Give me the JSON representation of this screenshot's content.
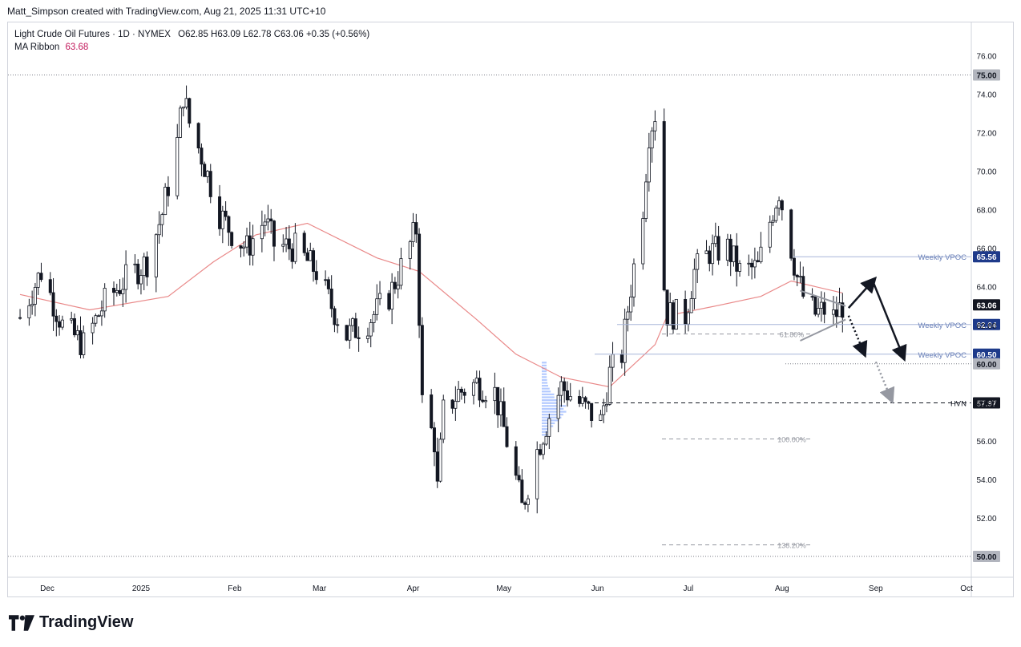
{
  "header": {
    "credit": "Matt_Simpson created with TradingView.com, Aug 21, 2025 11:31 UTC+10"
  },
  "legend": {
    "symbol": "Light Crude Oil Futures · 1D · NYMEX",
    "ohlc": "O62.85  H63.09  L62.78  C63.06  +0.35 (+0.56%)",
    "ma_label": "MA Ribbon",
    "ma_value": "63.68"
  },
  "brand": {
    "name": "TradingView"
  },
  "chart_data": {
    "type": "candlestick",
    "title": "Light Crude Oil Futures · 1D · NYMEX",
    "ylim": [
      50.0,
      76.0
    ],
    "y_ticks": [
      "50.00",
      "52.00",
      "54.00",
      "56.00",
      "58.00",
      "60.00",
      "62.00",
      "64.00",
      "66.00",
      "68.00",
      "70.00",
      "72.00",
      "74.00",
      "76.00"
    ],
    "x_ticks": [
      {
        "label": "Dec",
        "date": "2024-12-01"
      },
      {
        "label": "2025",
        "date": "2025-01-01"
      },
      {
        "label": "Feb",
        "date": "2025-02-01"
      },
      {
        "label": "Mar",
        "date": "2025-03-01"
      },
      {
        "label": "Apr",
        "date": "2025-04-01"
      },
      {
        "label": "May",
        "date": "2025-05-01"
      },
      {
        "label": "Jun",
        "date": "2025-06-01"
      },
      {
        "label": "Jul",
        "date": "2025-07-01"
      },
      {
        "label": "Aug",
        "date": "2025-08-01"
      },
      {
        "label": "Sep",
        "date": "2025-09-01"
      },
      {
        "label": "Oct",
        "date": "2025-10-01"
      }
    ],
    "price_path": [
      [
        "2024-11-22",
        62.4
      ],
      [
        "2024-11-29",
        64.8
      ],
      [
        "2024-12-06",
        62.0
      ],
      [
        "2024-12-13",
        61.0
      ],
      [
        "2024-12-20",
        63.2
      ],
      [
        "2024-12-27",
        64.4
      ],
      [
        "2025-01-03",
        65.3
      ],
      [
        "2025-01-08",
        67.8
      ],
      [
        "2025-01-13",
        71.5
      ],
      [
        "2025-01-15",
        74.0
      ],
      [
        "2025-01-17",
        72.5
      ],
      [
        "2025-01-21",
        70.8
      ],
      [
        "2025-01-27",
        67.8
      ],
      [
        "2025-01-31",
        66.8
      ],
      [
        "2025-02-05",
        66.0
      ],
      [
        "2025-02-11",
        67.5
      ],
      [
        "2025-02-14",
        66.2
      ],
      [
        "2025-02-21",
        66.0
      ],
      [
        "2025-02-28",
        64.8
      ],
      [
        "2025-03-05",
        63.0
      ],
      [
        "2025-03-10",
        61.5
      ],
      [
        "2025-03-17",
        62.2
      ],
      [
        "2025-03-24",
        63.5
      ],
      [
        "2025-03-28",
        65.0
      ],
      [
        "2025-04-02",
        67.0
      ],
      [
        "2025-04-03",
        62.6
      ],
      [
        "2025-04-04",
        58.0
      ],
      [
        "2025-04-08",
        56.0
      ],
      [
        "2025-04-09",
        53.5
      ],
      [
        "2025-04-11",
        57.5
      ],
      [
        "2025-04-16",
        58.5
      ],
      [
        "2025-04-22",
        59.0
      ],
      [
        "2025-04-28",
        58.5
      ],
      [
        "2025-05-02",
        56.0
      ],
      [
        "2025-05-05",
        54.0
      ],
      [
        "2025-05-07",
        52.5
      ],
      [
        "2025-05-12",
        55.5
      ],
      [
        "2025-05-16",
        57.3
      ],
      [
        "2025-05-20",
        58.8
      ],
      [
        "2025-05-27",
        57.8
      ],
      [
        "2025-06-02",
        57.0
      ],
      [
        "2025-06-05",
        59.5
      ],
      [
        "2025-06-09",
        60.5
      ],
      [
        "2025-06-12",
        64.0
      ],
      [
        "2025-06-16",
        68.2
      ],
      [
        "2025-06-18",
        72.0
      ],
      [
        "2025-06-20",
        73.0
      ],
      [
        "2025-06-23",
        64.0
      ],
      [
        "2025-06-24",
        62.6
      ],
      [
        "2025-06-30",
        62.5
      ],
      [
        "2025-07-03",
        64.8
      ],
      [
        "2025-07-08",
        65.8
      ],
      [
        "2025-07-14",
        66.0
      ],
      [
        "2025-07-18",
        64.8
      ],
      [
        "2025-07-24",
        65.0
      ],
      [
        "2025-07-29",
        68.0
      ],
      [
        "2025-07-31",
        69.0
      ],
      [
        "2025-08-04",
        66.0
      ],
      [
        "2025-08-06",
        64.5
      ],
      [
        "2025-08-08",
        63.5
      ],
      [
        "2025-08-12",
        62.6
      ],
      [
        "2025-08-15",
        62.8
      ],
      [
        "2025-08-18",
        62.4
      ],
      [
        "2025-08-21",
        63.06
      ]
    ],
    "moving_average": [
      [
        "2024-11-22",
        63.6
      ],
      [
        "2024-12-15",
        62.8
      ],
      [
        "2025-01-10",
        63.5
      ],
      [
        "2025-01-25",
        65.3
      ],
      [
        "2025-02-08",
        66.7
      ],
      [
        "2025-02-25",
        67.3
      ],
      [
        "2025-03-20",
        65.5
      ],
      [
        "2025-04-03",
        64.8
      ],
      [
        "2025-04-22",
        62.3
      ],
      [
        "2025-05-05",
        60.5
      ],
      [
        "2025-05-20",
        59.3
      ],
      [
        "2025-06-05",
        58.8
      ],
      [
        "2025-06-20",
        61.0
      ],
      [
        "2025-06-24",
        62.5
      ],
      [
        "2025-07-10",
        63.0
      ],
      [
        "2025-07-25",
        63.5
      ],
      [
        "2025-08-04",
        64.3
      ],
      [
        "2025-08-21",
        63.68
      ]
    ],
    "levels": [
      {
        "label": "Weekly VPOC",
        "value": "65.56",
        "price": 65.56,
        "color": "#2962ff"
      },
      {
        "label": "Weekly VPOC",
        "value": "62.04",
        "price": 62.04,
        "color": "#2962ff"
      },
      {
        "label": "Weekly VPOC",
        "value": "60.50",
        "price": 60.5,
        "color": "#2962ff"
      },
      {
        "label": "HVN",
        "value": "57.97",
        "price": 57.97,
        "color": "#131722"
      }
    ],
    "price_tags": [
      {
        "value": "75.00",
        "price": 75.0,
        "style": "gray"
      },
      {
        "value": "63.06",
        "price": 63.06,
        "style": "dark"
      },
      {
        "value": "60.00",
        "price": 60.0,
        "style": "gray"
      },
      {
        "value": "50.00",
        "price": 50.0,
        "style": "gray"
      }
    ],
    "fib_levels": [
      {
        "label": "61.80%",
        "price": 61.55
      },
      {
        "label": "100.00%",
        "price": 56.1
      },
      {
        "label": "138.20%",
        "price": 50.6
      }
    ]
  }
}
